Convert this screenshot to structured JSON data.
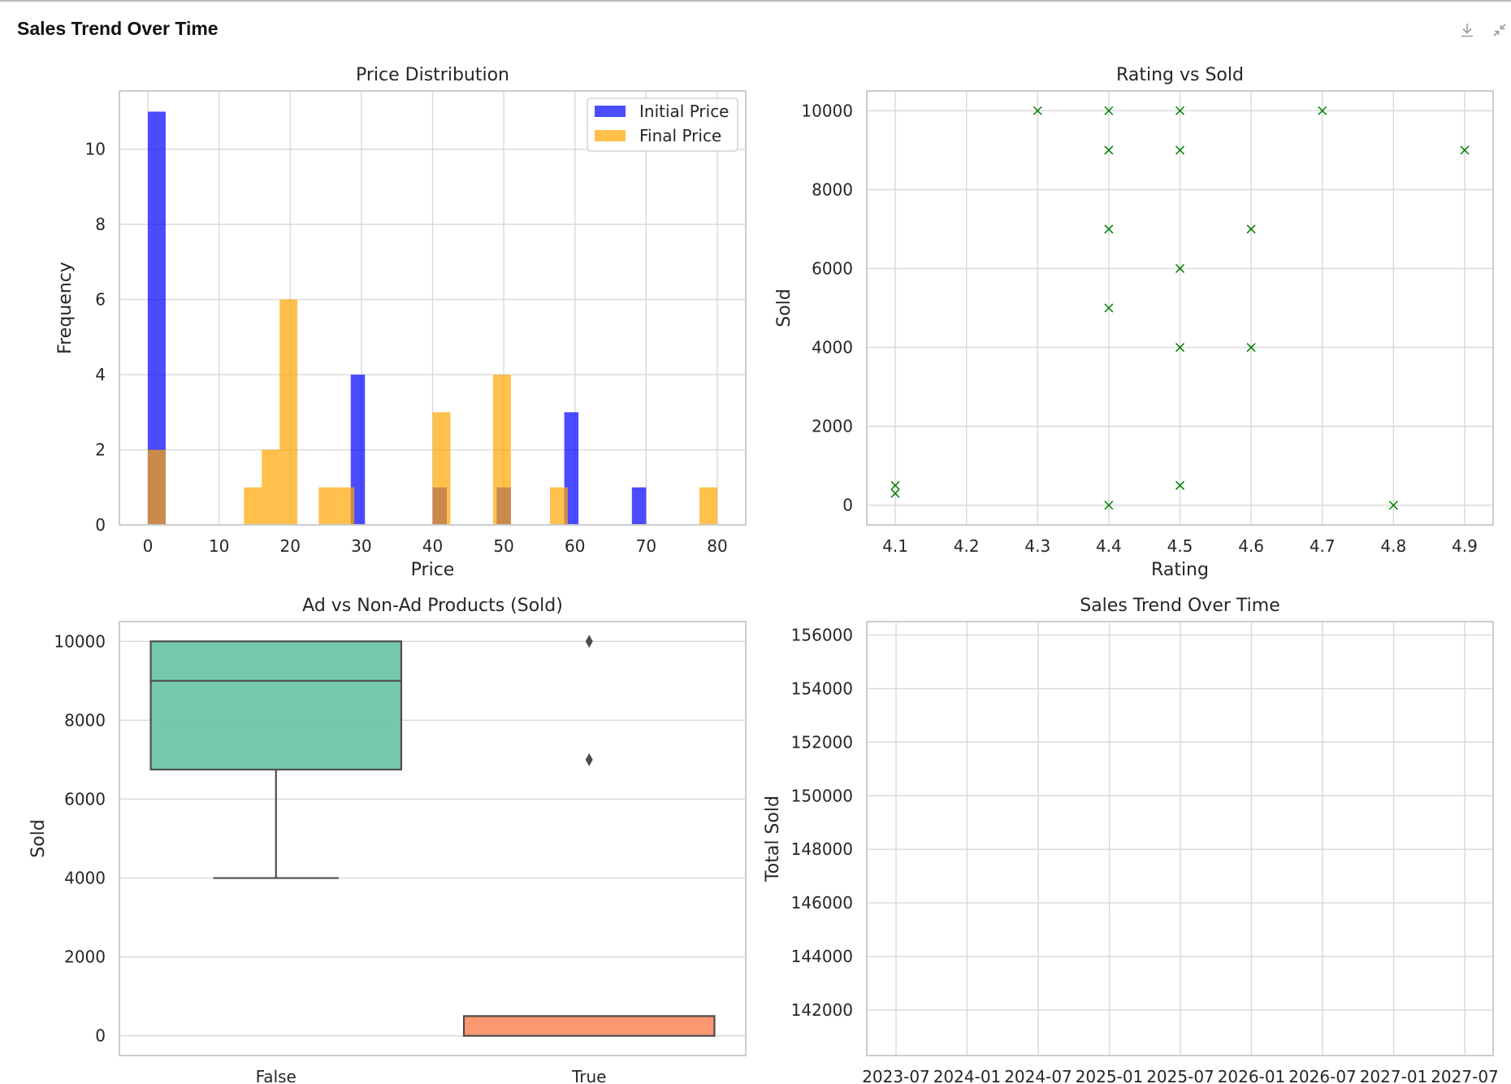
{
  "panel": {
    "title": "Sales Trend Over Time",
    "icons": [
      "download-icon",
      "collapse-icon"
    ]
  },
  "chart_data": [
    {
      "type": "bar",
      "title": "Price Distribution",
      "xlabel": "Price",
      "ylabel": "Frequency",
      "xlim": [
        -4,
        84
      ],
      "ylim": [
        0,
        11.55
      ],
      "xticks": [
        0,
        10,
        20,
        30,
        40,
        50,
        60,
        70,
        80
      ],
      "yticks": [
        0,
        2,
        4,
        6,
        8,
        10
      ],
      "grid": true,
      "legend": "top-right",
      "series": [
        {
          "name": "Initial Price",
          "color": "#0000ff",
          "opacity": 0.7,
          "bins": [
            {
              "x0": 0,
              "x1": 2.5,
              "count": 11
            },
            {
              "x0": 28.5,
              "x1": 30.5,
              "count": 4
            },
            {
              "x0": 40,
              "x1": 42,
              "count": 1
            },
            {
              "x0": 49,
              "x1": 51,
              "count": 1
            },
            {
              "x0": 58.5,
              "x1": 60.5,
              "count": 3
            },
            {
              "x0": 68,
              "x1": 70,
              "count": 1
            }
          ]
        },
        {
          "name": "Final Price",
          "color": "#ffa500",
          "opacity": 0.7,
          "bins": [
            {
              "x0": 0,
              "x1": 2.5,
              "count": 2
            },
            {
              "x0": 13.5,
              "x1": 16,
              "count": 1
            },
            {
              "x0": 16,
              "x1": 18.5,
              "count": 2
            },
            {
              "x0": 18.5,
              "x1": 21,
              "count": 6
            },
            {
              "x0": 24,
              "x1": 26.5,
              "count": 1
            },
            {
              "x0": 26.5,
              "x1": 29,
              "count": 1
            },
            {
              "x0": 40,
              "x1": 42.5,
              "count": 3
            },
            {
              "x0": 48.5,
              "x1": 51,
              "count": 4
            },
            {
              "x0": 56.5,
              "x1": 59,
              "count": 1
            },
            {
              "x0": 77.5,
              "x1": 80,
              "count": 1
            }
          ]
        }
      ]
    },
    {
      "type": "scatter",
      "title": "Rating vs Sold",
      "xlabel": "Rating",
      "ylabel": "Sold",
      "xlim": [
        4.06,
        4.94
      ],
      "ylim": [
        -500,
        10500
      ],
      "xticks": [
        4.1,
        4.2,
        4.3,
        4.4,
        4.5,
        4.6,
        4.7,
        4.8,
        4.9
      ],
      "yticks": [
        0,
        2000,
        4000,
        6000,
        8000,
        10000
      ],
      "grid": true,
      "marker": "x",
      "color": "#008000",
      "points": [
        [
          4.1,
          500
        ],
        [
          4.1,
          300
        ],
        [
          4.3,
          10000
        ],
        [
          4.4,
          10000
        ],
        [
          4.4,
          9000
        ],
        [
          4.4,
          7000
        ],
        [
          4.4,
          5000
        ],
        [
          4.4,
          0
        ],
        [
          4.5,
          10000
        ],
        [
          4.5,
          9000
        ],
        [
          4.5,
          6000
        ],
        [
          4.5,
          4000
        ],
        [
          4.5,
          500
        ],
        [
          4.6,
          7000
        ],
        [
          4.6,
          4000
        ],
        [
          4.7,
          10000
        ],
        [
          4.8,
          0
        ],
        [
          4.9,
          9000
        ]
      ]
    },
    {
      "type": "box",
      "title": "Ad vs Non-Ad Products (Sold)",
      "xlabel": "",
      "ylabel": "Sold",
      "categories": [
        "False",
        "True"
      ],
      "ylim": [
        -500,
        10500
      ],
      "yticks": [
        0,
        2000,
        4000,
        6000,
        8000,
        10000
      ],
      "grid": true,
      "boxes": [
        {
          "category": "False",
          "color": "#66c2a5",
          "whisker_low": 4000,
          "q1": 6750,
          "median": 9000,
          "q3": 10000,
          "whisker_high": 10000,
          "outliers": []
        },
        {
          "category": "True",
          "color": "#fc8d62",
          "whisker_low": 0,
          "q1": 0,
          "median": 500,
          "q3": 500,
          "whisker_high": 500,
          "outliers": [
            10000,
            7000
          ]
        }
      ]
    },
    {
      "type": "line",
      "title": "Sales Trend Over Time",
      "xlabel": "",
      "ylabel": "Total Sold",
      "xticks": [
        "2023-07",
        "2024-01",
        "2024-07",
        "2025-01",
        "2025-07",
        "2026-01",
        "2026-07",
        "2027-01",
        "2027-07"
      ],
      "yticks": [
        142000,
        144000,
        146000,
        148000,
        150000,
        152000,
        154000,
        156000
      ],
      "ylim": [
        140300,
        156500
      ],
      "grid": true,
      "series": []
    }
  ]
}
